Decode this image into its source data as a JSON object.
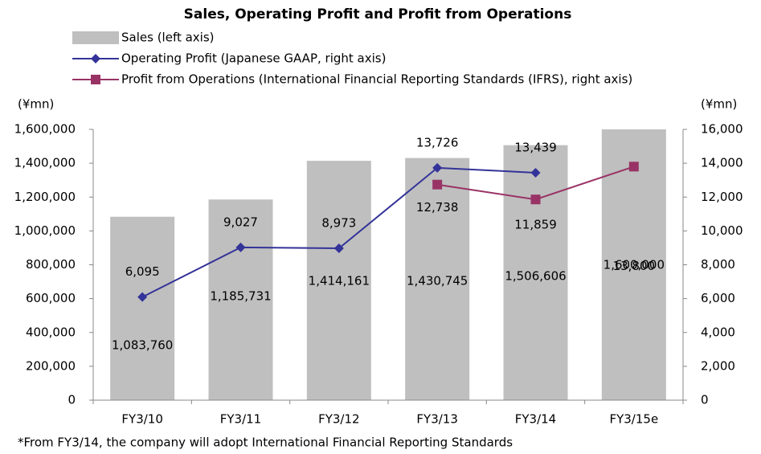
{
  "chart_data": {
    "type": "bar-line",
    "title": "Sales, Operating Profit and Profit from Operations",
    "y_unit": "(¥mn)",
    "y2_unit": "(¥mn)",
    "footnote": "*From FY3/14, the company will adopt International Financial Reporting Standards",
    "categories": [
      "FY3/10",
      "FY3/11",
      "FY3/12",
      "FY3/13",
      "FY3/14",
      "FY3/15e"
    ],
    "series": [
      {
        "name": "Sales (left axis)",
        "type": "bar",
        "color": "#bfbfbf",
        "values": [
          1083760,
          1185731,
          1414161,
          1430745,
          1506606,
          1600000
        ],
        "value_labels": [
          "1,083,760",
          "1,185,731",
          "1,414,161",
          "1,430,745",
          "1,506,606",
          "1,600,000"
        ]
      },
      {
        "name": "Operating Profit (Japanese GAAP, right axis)",
        "type": "line",
        "marker": "diamond",
        "axis": "y2",
        "color": "#333399",
        "values": [
          6095,
          9027,
          8973,
          13726,
          13439,
          null
        ],
        "value_labels": [
          "6,095",
          "9,027",
          "8,973",
          "13,726",
          "13,439",
          null
        ]
      },
      {
        "name": "Profit from Operations (International Financial Reporting Standards (IFRS), right axis)",
        "type": "line",
        "marker": "square",
        "axis": "y2",
        "color": "#993366",
        "values": [
          null,
          null,
          null,
          12738,
          11859,
          13800
        ],
        "value_labels": [
          null,
          null,
          null,
          "12,738",
          "11,859",
          "13,800"
        ]
      }
    ],
    "ylim": [
      0,
      1600000
    ],
    "yticks": [
      0,
      {
        "value": 200000,
        "label": "200,000"
      },
      {
        "value": 400000,
        "label": "400,000"
      },
      {
        "value": 600000,
        "label": "600,000"
      },
      {
        "value": 800000,
        "label": "800,000"
      },
      {
        "value": 1000000,
        "label": "1,000,000"
      },
      {
        "value": 1200000,
        "label": "1,200,000"
      },
      {
        "value": 1400000,
        "label": "1,400,000"
      },
      {
        "value": 1600000,
        "label": "1,600,000"
      }
    ],
    "y2lim": [
      0,
      16000
    ],
    "y2ticks": [
      0,
      {
        "value": 2000,
        "label": "2,000"
      },
      {
        "value": 4000,
        "label": "4,000"
      },
      {
        "value": 6000,
        "label": "6,000"
      },
      {
        "value": 8000,
        "label": "8,000"
      },
      {
        "value": 10000,
        "label": "10,000"
      },
      {
        "value": 12000,
        "label": "12,000"
      },
      {
        "value": 14000,
        "label": "14,000"
      },
      {
        "value": 16000,
        "label": "16,000"
      }
    ],
    "grid": false,
    "legend": "top"
  }
}
